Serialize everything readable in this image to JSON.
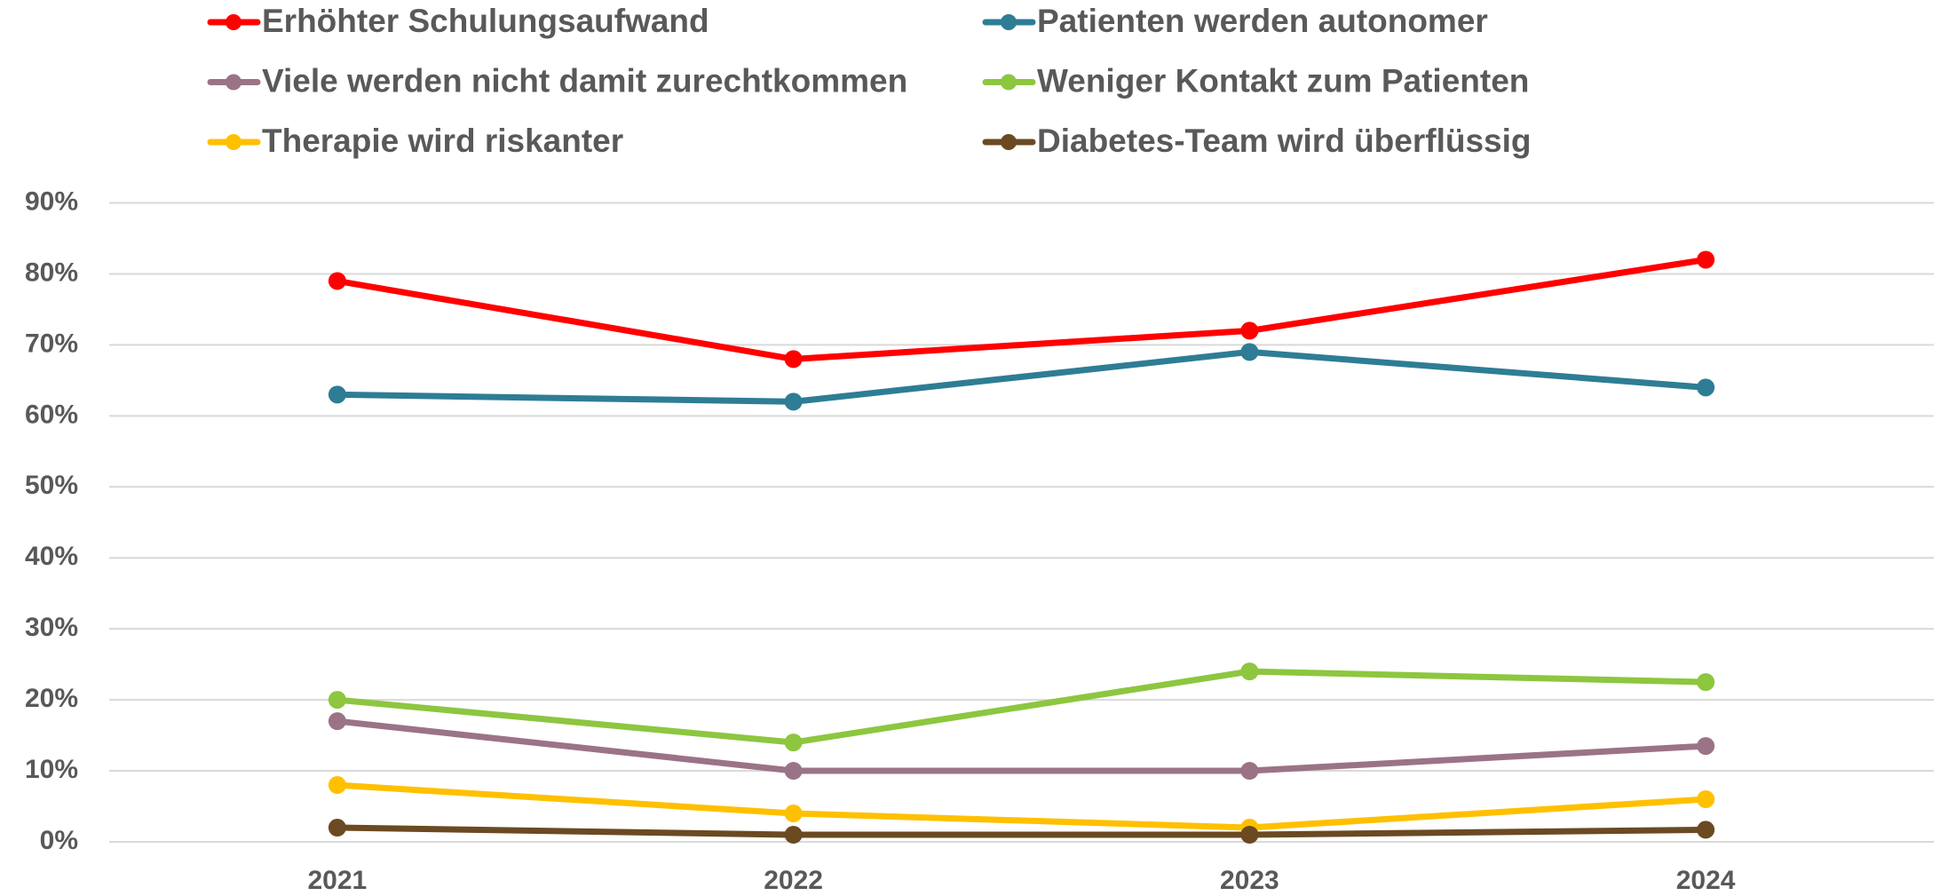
{
  "chart_data": {
    "type": "line",
    "categories": [
      "2021",
      "2022",
      "2023",
      "2024"
    ],
    "series": [
      {
        "name": "Erhöhter Schulungsaufwand",
        "color": "#ff0000",
        "values": [
          79,
          68,
          72,
          82
        ]
      },
      {
        "name": "Patienten werden autonomer",
        "color": "#2e7d95",
        "values": [
          63,
          62,
          69,
          64
        ]
      },
      {
        "name": "Viele werden nicht damit zurechtkommen",
        "color": "#9b7386",
        "values": [
          17,
          10,
          10,
          13.5
        ]
      },
      {
        "name": "Weniger Kontakt zum Patienten",
        "color": "#8dc63f",
        "values": [
          20,
          14,
          24,
          22.5
        ]
      },
      {
        "name": "Therapie wird riskanter",
        "color": "#ffc000",
        "values": [
          8,
          4,
          2,
          6
        ]
      },
      {
        "name": "Diabetes-Team wird überflüssig",
        "color": "#6b4a22",
        "values": [
          2,
          1,
          1,
          1.7
        ]
      }
    ],
    "ylim": [
      0,
      90
    ],
    "yticks": [
      {
        "value": 0,
        "label": "0%"
      },
      {
        "value": 10,
        "label": "10%"
      },
      {
        "value": 20,
        "label": "20%"
      },
      {
        "value": 30,
        "label": "30%"
      },
      {
        "value": 40,
        "label": "40%"
      },
      {
        "value": 50,
        "label": "50%"
      },
      {
        "value": 60,
        "label": "60%"
      },
      {
        "value": 70,
        "label": "70%"
      },
      {
        "value": 80,
        "label": "80%"
      },
      {
        "value": 90,
        "label": "90%"
      }
    ],
    "grid": true,
    "legend": "top"
  }
}
